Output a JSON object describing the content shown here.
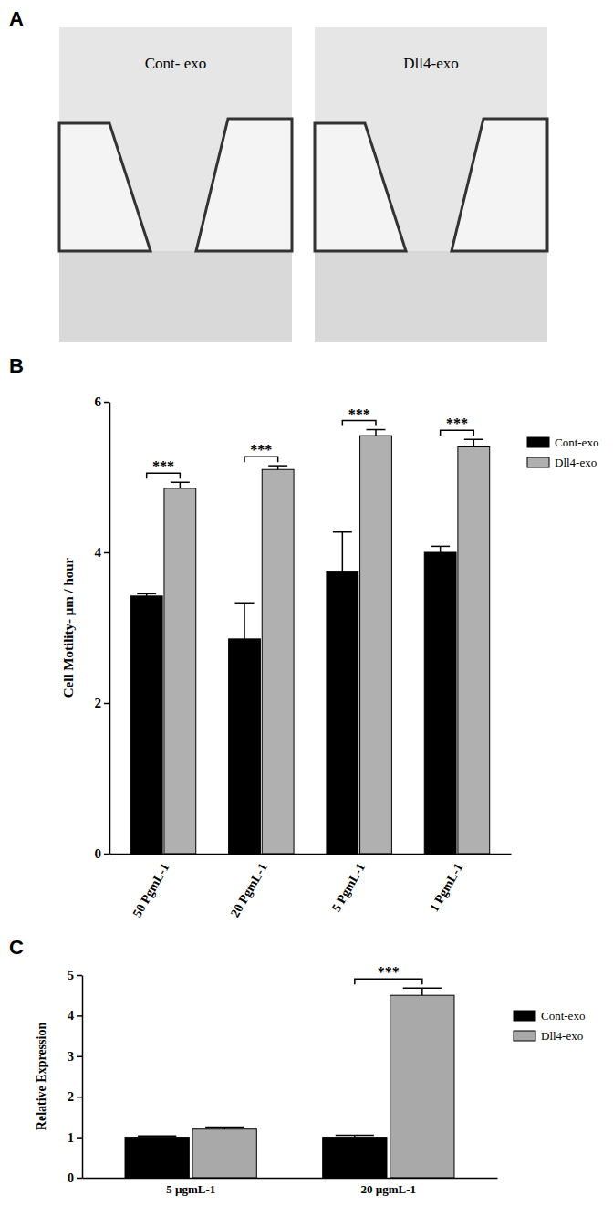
{
  "image_panel": {
    "label": "A",
    "captions": [
      "Cont- exo",
      "Dll4-exo"
    ]
  },
  "chart_data": [
    {
      "type": "bar",
      "title": "B",
      "y_label": "Cell Motility- μm / hour",
      "categories": [
        "50 PgmL-1",
        "20 PgmL-1",
        "5 PgmL-1",
        "1 PgmL-1"
      ],
      "series": [
        {
          "name": "Cont-exo",
          "color": "#000000",
          "values": [
            3.42,
            2.85,
            3.75,
            4.0
          ],
          "errors": [
            0.03,
            0.48,
            0.52,
            0.08
          ]
        },
        {
          "name": "Dll4-exo",
          "color": "#b0b0b0",
          "values": [
            4.85,
            5.1,
            5.55,
            5.4
          ],
          "errors": [
            0.08,
            0.05,
            0.08,
            0.1
          ]
        }
      ],
      "annotations": [
        {
          "category": "50 PgmL-1",
          "text": "***"
        },
        {
          "category": "20 PgmL-1",
          "text": "***"
        },
        {
          "category": "5 PgmL-1",
          "text": "***"
        },
        {
          "category": "1 PgmL-1",
          "text": "***"
        }
      ],
      "ylim": [
        0,
        6
      ],
      "yticks": [
        0,
        2,
        4,
        6
      ],
      "legend": "right"
    },
    {
      "type": "bar",
      "title": "C",
      "y_label": "Relative Expression",
      "categories": [
        "5 µgmL-1",
        "20 µgmL-1"
      ],
      "series": [
        {
          "name": "Cont-exo",
          "color": "#000000",
          "values": [
            1.0,
            1.0
          ],
          "errors": [
            0.03,
            0.05
          ]
        },
        {
          "name": "Dll4-exo",
          "color": "#a9a9a9",
          "values": [
            1.2,
            4.5
          ],
          "errors": [
            0.05,
            0.18
          ]
        }
      ],
      "annotations": [
        {
          "category": "20 µgmL-1",
          "text": "***"
        }
      ],
      "ylim": [
        0,
        5
      ],
      "yticks": [
        0,
        1,
        2,
        3,
        4,
        5
      ],
      "legend": "right"
    }
  ]
}
